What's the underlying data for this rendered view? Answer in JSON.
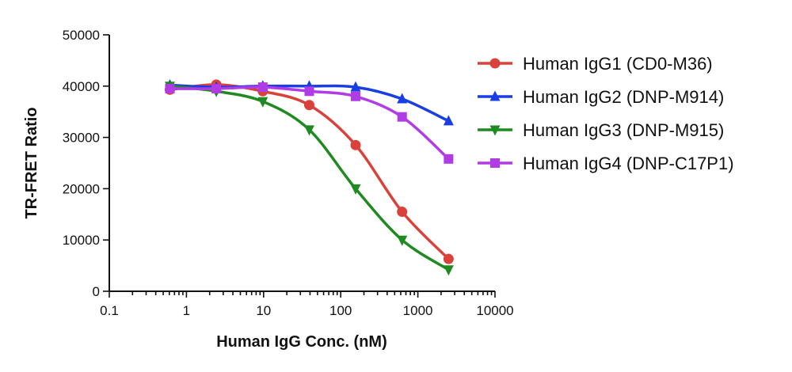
{
  "chart_data": {
    "type": "line",
    "title": "",
    "xlabel": "Human IgG Conc. (nM)",
    "ylabel": "TR-FRET Ratio",
    "x_scale": "log",
    "xlim": [
      0.1,
      10000
    ],
    "ylim": [
      0,
      50000
    ],
    "x_tick_labels": [
      "0.1",
      "1",
      "10",
      "100",
      "1000",
      "10000"
    ],
    "y_tick_labels": [
      "0",
      "10000",
      "20000",
      "30000",
      "40000",
      "50000"
    ],
    "legend_position": "right",
    "grid": false,
    "series": [
      {
        "name": "Human IgG1 (CD0-M36)",
        "color": "#d9413a",
        "marker": "circle",
        "x": [
          0.61,
          2.44,
          9.77,
          39.1,
          156,
          625,
          2500
        ],
        "y": [
          39300,
          40300,
          39000,
          36300,
          28500,
          15500,
          6300
        ]
      },
      {
        "name": "Human IgG2 (DNP-M914)",
        "color": "#1a3ee6",
        "marker": "triangle-up",
        "x": [
          0.61,
          2.44,
          9.77,
          39.1,
          156,
          625,
          2500
        ],
        "y": [
          40200,
          39800,
          40000,
          40000,
          39800,
          37500,
          33200
        ]
      },
      {
        "name": "Human IgG3 (DNP-M915)",
        "color": "#1f8a1f",
        "marker": "triangle-down",
        "x": [
          0.61,
          2.44,
          9.77,
          39.1,
          156,
          625,
          2500
        ],
        "y": [
          40000,
          39000,
          37000,
          31500,
          20000,
          10000,
          4200
        ]
      },
      {
        "name": "Human IgG4 (DNP-C17P1)",
        "color": "#b13ce6",
        "marker": "square",
        "x": [
          0.61,
          2.44,
          9.77,
          39.1,
          156,
          625,
          2500
        ],
        "y": [
          39500,
          39500,
          39800,
          39000,
          38000,
          34000,
          25800
        ]
      }
    ]
  }
}
